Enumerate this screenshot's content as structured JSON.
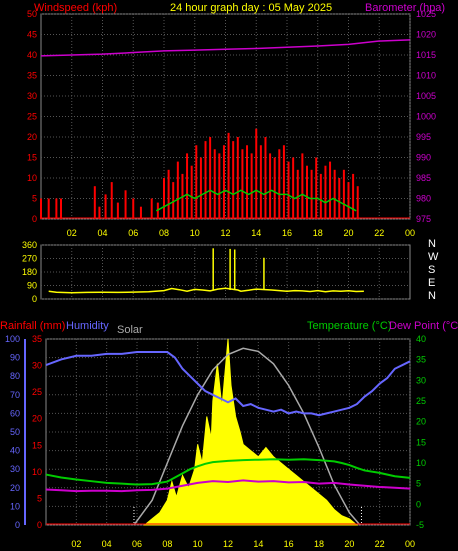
{
  "header": {
    "title": "24 hour graph day : 05 May 2025",
    "left_label": "Windspeed (kph)",
    "right_label": "Barometer (hpa)"
  },
  "labels": {
    "rainfall": "Rainfall (mm)",
    "humidity": "Humidity",
    "solar": "Solar",
    "temperature": "Temperature (°C)",
    "dewpoint": "Dew Point (°C)"
  },
  "colors": {
    "wind": "#ff0000",
    "gust_axis": "#ff0000",
    "baro": "#cc00cc",
    "winddir": "#ffff00",
    "humidity": "#6666ff",
    "temp": "#00cc00",
    "dew": "#cc00cc",
    "solar": "#aaaaaa",
    "solar_fill": "#ffff00",
    "hours": "#ffff00"
  },
  "chart_data": [
    {
      "type": "bar",
      "name": "wind",
      "x_ticks": [
        "02",
        "04",
        "06",
        "08",
        "10",
        "12",
        "14",
        "16",
        "18",
        "20",
        "22",
        "00"
      ],
      "y_left_ticks": [
        "0",
        "5",
        "10",
        "15",
        "20",
        "25",
        "30",
        "35",
        "40",
        "45",
        "50"
      ],
      "y_right_ticks": [
        "975",
        "980",
        "985",
        "990",
        "995",
        "1000",
        "1005",
        "1010",
        "1015",
        "1020",
        "1025"
      ],
      "ylim_left": [
        0,
        50
      ],
      "ylim_right": [
        975,
        1025
      ],
      "baro": [
        [
          0,
          1014.8
        ],
        [
          2,
          1015.0
        ],
        [
          4,
          1015.2
        ],
        [
          6,
          1015.6
        ],
        [
          8,
          1016.0
        ],
        [
          10,
          1016.2
        ],
        [
          12,
          1016.4
        ],
        [
          14,
          1016.6
        ],
        [
          16,
          1016.9
        ],
        [
          18,
          1017.2
        ],
        [
          20,
          1017.6
        ],
        [
          22,
          1018.4
        ],
        [
          24,
          1018.7
        ]
      ],
      "wind_bars": [
        [
          0,
          5
        ],
        [
          0.5,
          5
        ],
        [
          1,
          5
        ],
        [
          1.3,
          5
        ],
        [
          3.5,
          8
        ],
        [
          3.8,
          3
        ],
        [
          4.2,
          6
        ],
        [
          4.6,
          9
        ],
        [
          5.0,
          4
        ],
        [
          5.5,
          7
        ],
        [
          6.0,
          5
        ],
        [
          6.5,
          3
        ],
        [
          7.2,
          5
        ],
        [
          7.6,
          4
        ],
        [
          8.0,
          10
        ],
        [
          8.3,
          12
        ],
        [
          8.6,
          9
        ],
        [
          8.9,
          14
        ],
        [
          9.2,
          11
        ],
        [
          9.5,
          16
        ],
        [
          9.8,
          13
        ],
        [
          10.1,
          18
        ],
        [
          10.4,
          15
        ],
        [
          10.7,
          19
        ],
        [
          11.0,
          20
        ],
        [
          11.3,
          17
        ],
        [
          11.6,
          16
        ],
        [
          11.9,
          18
        ],
        [
          12.2,
          21
        ],
        [
          12.5,
          19
        ],
        [
          12.8,
          20
        ],
        [
          13.1,
          17
        ],
        [
          13.4,
          18
        ],
        [
          13.7,
          16
        ],
        [
          14.0,
          22
        ],
        [
          14.3,
          18
        ],
        [
          14.6,
          20
        ],
        [
          14.9,
          16
        ],
        [
          15.2,
          15
        ],
        [
          15.5,
          17
        ],
        [
          15.8,
          18
        ],
        [
          16.1,
          14
        ],
        [
          16.4,
          15
        ],
        [
          16.7,
          12
        ],
        [
          17.0,
          16
        ],
        [
          17.3,
          13
        ],
        [
          17.6,
          12
        ],
        [
          17.9,
          15
        ],
        [
          18.2,
          11
        ],
        [
          18.5,
          13
        ],
        [
          18.8,
          14
        ],
        [
          19.1,
          12
        ],
        [
          19.4,
          10
        ],
        [
          19.7,
          12
        ],
        [
          20.0,
          9
        ],
        [
          20.3,
          11
        ],
        [
          20.6,
          8
        ]
      ],
      "avg_wind": [
        [
          7.5,
          2
        ],
        [
          8,
          3
        ],
        [
          8.5,
          4
        ],
        [
          9,
          5
        ],
        [
          9.5,
          6
        ],
        [
          10,
          5
        ],
        [
          10.5,
          6
        ],
        [
          11,
          7
        ],
        [
          11.5,
          6
        ],
        [
          12,
          7
        ],
        [
          12.5,
          6
        ],
        [
          13,
          7
        ],
        [
          13.5,
          6
        ],
        [
          14,
          7
        ],
        [
          14.5,
          6
        ],
        [
          15,
          7
        ],
        [
          15.5,
          6
        ],
        [
          16,
          6
        ],
        [
          16.5,
          5
        ],
        [
          17,
          6
        ],
        [
          17.5,
          5
        ],
        [
          18,
          5
        ],
        [
          18.5,
          4
        ],
        [
          19,
          5
        ],
        [
          19.5,
          4
        ],
        [
          20,
          3
        ],
        [
          20.5,
          2
        ]
      ]
    },
    {
      "type": "scatter",
      "name": "wind_direction",
      "y_ticks": [
        "360",
        "270",
        "180",
        "90",
        "0"
      ],
      "compass": [
        "N",
        "W",
        "S",
        "E",
        "N"
      ],
      "ylim": [
        0,
        360
      ],
      "points": [
        [
          0.5,
          52
        ],
        [
          1,
          45
        ],
        [
          2,
          42
        ],
        [
          3,
          44
        ],
        [
          4,
          45
        ],
        [
          5,
          44
        ],
        [
          6,
          46
        ],
        [
          7,
          48
        ],
        [
          8,
          56
        ],
        [
          8.5,
          70
        ],
        [
          9,
          62
        ],
        [
          9.5,
          52
        ],
        [
          10,
          64
        ],
        [
          10.5,
          60
        ],
        [
          11,
          54
        ],
        [
          11.2,
          338
        ],
        [
          11.5,
          66
        ],
        [
          12,
          72
        ],
        [
          12.3,
          334
        ],
        [
          12.6,
          330
        ],
        [
          12.8,
          60
        ],
        [
          13,
          52
        ],
        [
          13.5,
          58
        ],
        [
          14,
          66
        ],
        [
          14.5,
          275
        ],
        [
          15,
          60
        ],
        [
          15.5,
          56
        ],
        [
          16,
          52
        ],
        [
          16.5,
          56
        ],
        [
          17,
          54
        ],
        [
          17.5,
          50
        ],
        [
          18,
          56
        ],
        [
          18.5,
          48
        ],
        [
          19,
          54
        ],
        [
          19.5,
          52
        ],
        [
          20,
          55
        ],
        [
          20.5,
          50
        ],
        [
          21,
          52
        ]
      ]
    },
    {
      "type": "line",
      "name": "rain_humidity_temp",
      "y_left1_ticks": [
        "0",
        "10",
        "20",
        "30",
        "40",
        "50",
        "60",
        "70",
        "80",
        "90",
        "100"
      ],
      "y_left2_ticks": [
        "0",
        "5",
        "10",
        "15",
        "20",
        "25",
        "30",
        "35"
      ],
      "y_right_ticks": [
        "-5",
        "0",
        "5",
        "10",
        "15",
        "20",
        "25",
        "30",
        "35",
        "40"
      ],
      "ylim_humidity": [
        0,
        100
      ],
      "ylim_temp": [
        -5,
        40
      ],
      "humidity": [
        [
          0,
          86
        ],
        [
          1,
          89
        ],
        [
          2,
          91
        ],
        [
          3,
          91
        ],
        [
          4,
          92
        ],
        [
          5,
          92
        ],
        [
          6,
          93
        ],
        [
          7,
          93
        ],
        [
          8,
          93
        ],
        [
          8.5,
          90
        ],
        [
          9,
          84
        ],
        [
          9.5,
          80
        ],
        [
          10,
          76
        ],
        [
          10.5,
          72
        ],
        [
          11,
          70
        ],
        [
          11.5,
          68
        ],
        [
          12,
          66
        ],
        [
          12.5,
          68
        ],
        [
          13,
          64
        ],
        [
          13.5,
          65
        ],
        [
          14,
          63
        ],
        [
          14.5,
          62
        ],
        [
          15,
          61
        ],
        [
          15.5,
          62
        ],
        [
          16,
          60
        ],
        [
          16.5,
          61
        ],
        [
          17,
          60
        ],
        [
          17.5,
          60
        ],
        [
          18,
          59
        ],
        [
          18.5,
          60
        ],
        [
          19,
          61
        ],
        [
          19.5,
          62
        ],
        [
          20,
          63
        ],
        [
          20.5,
          65
        ],
        [
          21,
          69
        ],
        [
          21.5,
          72
        ],
        [
          22,
          76
        ],
        [
          22.5,
          79
        ],
        [
          23,
          84
        ],
        [
          23.5,
          86
        ],
        [
          24,
          88
        ]
      ],
      "temperature": [
        [
          0,
          7.2
        ],
        [
          1,
          6.5
        ],
        [
          2,
          6.0
        ],
        [
          3,
          5.6
        ],
        [
          4,
          5.2
        ],
        [
          5,
          5.0
        ],
        [
          6,
          4.8
        ],
        [
          7,
          4.9
        ],
        [
          8,
          5.5
        ],
        [
          8.5,
          6.5
        ],
        [
          9,
          7.5
        ],
        [
          9.5,
          8.5
        ],
        [
          10,
          9.2
        ],
        [
          10.5,
          9.8
        ],
        [
          11,
          10.2
        ],
        [
          12,
          10.5
        ],
        [
          13,
          10.7
        ],
        [
          14,
          10.8
        ],
        [
          15,
          10.9
        ],
        [
          16,
          10.8
        ],
        [
          17,
          10.9
        ],
        [
          18,
          10.7
        ],
        [
          19,
          10.4
        ],
        [
          19.5,
          10.0
        ],
        [
          20,
          9.5
        ],
        [
          20.5,
          8.8
        ],
        [
          21,
          8.2
        ],
        [
          22,
          7.6
        ],
        [
          23,
          6.8
        ],
        [
          24,
          6.4
        ]
      ],
      "dewpoint": [
        [
          0,
          3.6
        ],
        [
          1,
          3.4
        ],
        [
          2,
          3.2
        ],
        [
          3,
          3.3
        ],
        [
          4,
          3.3
        ],
        [
          5,
          3.2
        ],
        [
          6,
          3.4
        ],
        [
          7,
          3.5
        ],
        [
          8,
          3.8
        ],
        [
          9,
          4.5
        ],
        [
          10,
          5.2
        ],
        [
          11,
          5.6
        ],
        [
          12,
          5.4
        ],
        [
          13,
          5.8
        ],
        [
          14,
          5.5
        ],
        [
          15,
          5.6
        ],
        [
          16,
          5.3
        ],
        [
          17,
          5.4
        ],
        [
          18,
          5.0
        ],
        [
          19,
          5.2
        ],
        [
          20,
          4.8
        ],
        [
          21,
          4.5
        ],
        [
          22,
          4.2
        ],
        [
          23,
          4.0
        ],
        [
          24,
          3.8
        ]
      ],
      "solar_theoretical": [
        [
          5.8,
          0
        ],
        [
          7,
          8
        ],
        [
          8,
          20
        ],
        [
          9,
          32
        ],
        [
          10,
          42
        ],
        [
          11,
          50
        ],
        [
          12,
          55
        ],
        [
          13,
          57
        ],
        [
          14,
          56
        ],
        [
          15,
          52
        ],
        [
          16,
          45
        ],
        [
          17,
          36
        ],
        [
          18,
          25
        ],
        [
          19,
          13
        ],
        [
          20,
          4
        ],
        [
          20.7,
          0
        ]
      ],
      "solar_actual": [
        [
          6.5,
          0
        ],
        [
          7,
          2
        ],
        [
          7.5,
          4
        ],
        [
          8,
          8
        ],
        [
          8.3,
          14
        ],
        [
          8.6,
          9
        ],
        [
          9,
          16
        ],
        [
          9.4,
          12
        ],
        [
          9.8,
          18
        ],
        [
          10,
          26
        ],
        [
          10.3,
          20
        ],
        [
          10.6,
          35
        ],
        [
          10.9,
          28
        ],
        [
          11,
          40
        ],
        [
          11.3,
          52
        ],
        [
          11.6,
          38
        ],
        [
          12,
          60
        ],
        [
          12.2,
          45
        ],
        [
          12.5,
          35
        ],
        [
          12.8,
          30
        ],
        [
          13,
          26
        ],
        [
          13.5,
          24
        ],
        [
          14,
          22
        ],
        [
          14.5,
          25
        ],
        [
          15,
          22
        ],
        [
          15.5,
          20
        ],
        [
          16,
          18
        ],
        [
          16.5,
          16
        ],
        [
          17,
          14
        ],
        [
          17.5,
          12
        ],
        [
          18,
          10
        ],
        [
          18.5,
          8
        ],
        [
          19,
          5
        ],
        [
          19.5,
          3
        ],
        [
          20,
          2
        ],
        [
          20.5,
          0
        ]
      ],
      "x_ticks": [
        "02",
        "04",
        "06",
        "08",
        "10",
        "12",
        "14",
        "16",
        "18",
        "20",
        "22",
        "00"
      ]
    }
  ]
}
